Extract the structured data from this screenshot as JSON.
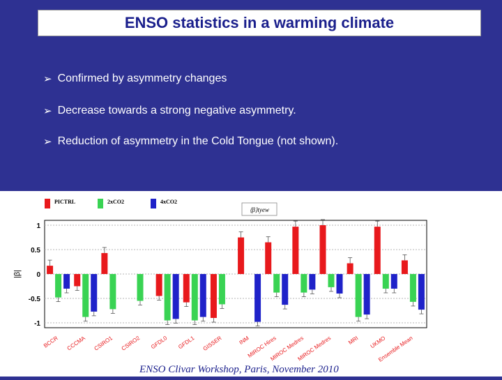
{
  "slide": {
    "title": "ENSO statistics in a warming climate",
    "bullet_glyph": "➢",
    "bullets": [
      "Confirmed by asymmetry changes",
      "Decrease towards a strong negative asymmetry.",
      "Reduction of asymmetry in the Cold Tongue (not shown)."
    ],
    "footer": "ENSO Clivar Workshop, Paris, November 2010",
    "colors": {
      "background": "#2e3192",
      "title_text": "#1a1f8c"
    }
  },
  "chart_data": {
    "type": "bar",
    "title": "⟨β⟩tyew",
    "ylabel": "|β|",
    "ylim": [
      -1.1,
      1.1
    ],
    "yticks": [
      -1,
      -0.5,
      0,
      0.5,
      1
    ],
    "ytick_labels": [
      "-1",
      "-0.5",
      "0",
      "0.5",
      "1"
    ],
    "categories": [
      "BCCR",
      "CCCMA",
      "CSIRO1",
      "CSIRO2",
      "GFDL0",
      "GFDL1",
      "GISSER",
      "INM",
      "MIROC Hires",
      "MIROC Medres",
      "MIROC Medres",
      "MRI",
      "UKMO",
      "Ensemble Mean"
    ],
    "category_labels": [
      "BCCR",
      "CCCMA",
      "CSIRO1",
      "CSIRO2",
      "GFDL0",
      "GFDL1",
      "GISSER",
      "INM",
      "MIROC Hires",
      "MIROC Medres",
      "MIROC Medres",
      "MRI",
      "UKMO",
      "Ensemble Mean"
    ],
    "legend": [
      "PICTRL",
      "2xCO2",
      "4xCO2"
    ],
    "series": [
      {
        "name": "PICTRL",
        "color": "#e8191c",
        "values": [
          0.17,
          -0.25,
          0.43,
          null,
          -0.45,
          -0.58,
          -0.9,
          0.75,
          0.65,
          0.97,
          1.0,
          0.22,
          0.97,
          0.28
        ]
      },
      {
        "name": "2xCO2",
        "color": "#39d353",
        "values": [
          -0.48,
          -0.88,
          -0.72,
          -0.55,
          -0.95,
          -0.95,
          -0.62,
          null,
          -0.38,
          -0.38,
          -0.27,
          -0.88,
          -0.3,
          -0.57
        ]
      },
      {
        "name": "4xCO2",
        "color": "#1f22c9",
        "values": [
          -0.3,
          -0.77,
          null,
          null,
          -0.92,
          -0.88,
          null,
          -0.98,
          -0.63,
          -0.32,
          -0.4,
          -0.83,
          -0.3,
          -0.73
        ]
      }
    ],
    "label_colors": [
      "#e8191c",
      "#e8191c",
      "#e8191c",
      "#e8191c",
      "#e8191c",
      "#e8191c",
      "#e8191c",
      "#e8191c",
      "#e8191c",
      "#e8191c",
      "#e8191c",
      "#e8191c",
      "#e8191c",
      "#e8191c"
    ],
    "grid": true,
    "legend_position": "top-left"
  }
}
